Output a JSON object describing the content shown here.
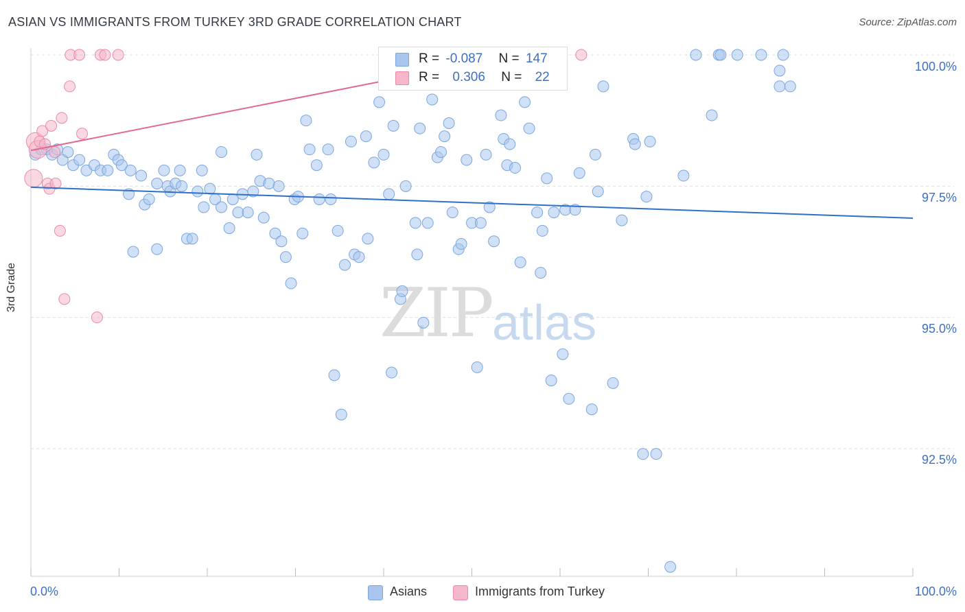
{
  "title": "ASIAN VS IMMIGRANTS FROM TURKEY 3RD GRADE CORRELATION CHART",
  "source": "Source: ZipAtlas.com",
  "watermark": {
    "zip": "ZIP",
    "atlas": "atlas"
  },
  "legend": {
    "rows": [
      {
        "r_label": "R =",
        "r_value": "-0.087",
        "n_label": "N =",
        "n_value": "147",
        "color": "#a9c6ee"
      },
      {
        "r_label": "R =",
        "r_value": "0.306",
        "n_label": "N =",
        "n_value": "22",
        "color": "#f5b8cb"
      }
    ]
  },
  "bottom_legend": [
    {
      "label": "Asians",
      "color": "#a9c6ee"
    },
    {
      "label": "Immigrants from Turkey",
      "color": "#f5b8cb"
    }
  ],
  "chart_data": {
    "type": "scatter",
    "title": "ASIAN VS IMMIGRANTS FROM TURKEY 3RD GRADE CORRELATION CHART",
    "xlabel": "",
    "ylabel": "3rd Grade",
    "xlim": [
      0,
      100
    ],
    "ylim": [
      90.2,
      100.3
    ],
    "x_tick_labels": [
      "0.0%",
      "100.0%"
    ],
    "y_ticks": [
      92.5,
      95.0,
      97.5,
      100.0
    ],
    "y_tick_labels": [
      "92.5%",
      "95.0%",
      "97.5%",
      "100.0%"
    ],
    "grid": true,
    "series": [
      {
        "name": "Asians",
        "color": "#a9c6ee",
        "stroke": "#7aa6de",
        "trend": {
          "x": [
            0,
            100
          ],
          "y": [
            97.48,
            96.89
          ],
          "color": "#2f6fca"
        },
        "points": [
          [
            0.5,
            98.1
          ],
          [
            1.2,
            98.2
          ],
          [
            1.8,
            98.2
          ],
          [
            2.4,
            98.1
          ],
          [
            3.0,
            98.2
          ],
          [
            3.6,
            98.0
          ],
          [
            4.2,
            98.15
          ],
          [
            4.8,
            97.9
          ],
          [
            5.5,
            98.0
          ],
          [
            6.3,
            97.8
          ],
          [
            7.2,
            97.9
          ],
          [
            7.9,
            97.8
          ],
          [
            8.7,
            97.8
          ],
          [
            9.4,
            98.1
          ],
          [
            9.9,
            98.0
          ],
          [
            10.3,
            97.9
          ],
          [
            11.1,
            97.35
          ],
          [
            11.3,
            97.8
          ],
          [
            12.5,
            97.7
          ],
          [
            12.9,
            97.15
          ],
          [
            13.4,
            97.25
          ],
          [
            11.6,
            96.25
          ],
          [
            14.3,
            97.55
          ],
          [
            14.3,
            96.3
          ],
          [
            15.1,
            97.8
          ],
          [
            15.5,
            97.5
          ],
          [
            15.8,
            97.4
          ],
          [
            16.4,
            97.55
          ],
          [
            16.9,
            97.8
          ],
          [
            17.1,
            97.5
          ],
          [
            17.7,
            96.5
          ],
          [
            18.3,
            96.5
          ],
          [
            18.9,
            97.4
          ],
          [
            19.4,
            97.8
          ],
          [
            19.6,
            97.1
          ],
          [
            20.3,
            97.45
          ],
          [
            20.9,
            97.25
          ],
          [
            21.6,
            97.1
          ],
          [
            21.6,
            98.15
          ],
          [
            22.5,
            96.7
          ],
          [
            22.9,
            97.25
          ],
          [
            23.5,
            97.0
          ],
          [
            24.0,
            97.35
          ],
          [
            24.6,
            97.0
          ],
          [
            25.2,
            97.4
          ],
          [
            25.6,
            98.1
          ],
          [
            26.0,
            97.6
          ],
          [
            26.4,
            96.9
          ],
          [
            27.0,
            97.55
          ],
          [
            27.7,
            96.6
          ],
          [
            28.1,
            97.5
          ],
          [
            28.4,
            96.45
          ],
          [
            28.9,
            96.15
          ],
          [
            29.5,
            95.65
          ],
          [
            29.9,
            97.25
          ],
          [
            30.3,
            97.3
          ],
          [
            30.8,
            96.6
          ],
          [
            31.2,
            98.75
          ],
          [
            31.6,
            98.2
          ],
          [
            32.4,
            97.9
          ],
          [
            32.7,
            97.25
          ],
          [
            33.7,
            98.2
          ],
          [
            34.0,
            97.25
          ],
          [
            34.4,
            93.9
          ],
          [
            34.8,
            96.65
          ],
          [
            35.2,
            93.15
          ],
          [
            35.6,
            96.0
          ],
          [
            36.3,
            98.35
          ],
          [
            36.7,
            96.2
          ],
          [
            37.2,
            96.15
          ],
          [
            38.0,
            98.45
          ],
          [
            38.2,
            96.5
          ],
          [
            38.9,
            97.95
          ],
          [
            39.5,
            99.1
          ],
          [
            40.0,
            98.1
          ],
          [
            40.6,
            97.35
          ],
          [
            40.9,
            93.95
          ],
          [
            41.1,
            98.65
          ],
          [
            41.9,
            95.35
          ],
          [
            42.1,
            95.5
          ],
          [
            42.5,
            97.5
          ],
          [
            43.6,
            96.8
          ],
          [
            43.8,
            96.2
          ],
          [
            44.1,
            98.6
          ],
          [
            44.5,
            94.9
          ],
          [
            45.0,
            96.8
          ],
          [
            45.5,
            99.15
          ],
          [
            46.1,
            98.05
          ],
          [
            46.5,
            98.15
          ],
          [
            46.9,
            98.45
          ],
          [
            47.4,
            98.7
          ],
          [
            47.8,
            97.0
          ],
          [
            48.5,
            96.3
          ],
          [
            48.8,
            96.4
          ],
          [
            49.4,
            98.0
          ],
          [
            50.0,
            96.8
          ],
          [
            50.6,
            94.05
          ],
          [
            51.0,
            96.8
          ],
          [
            51.6,
            98.1
          ],
          [
            52.0,
            97.1
          ],
          [
            52.5,
            96.45
          ],
          [
            53.3,
            98.85
          ],
          [
            53.6,
            98.4
          ],
          [
            54.0,
            97.9
          ],
          [
            54.3,
            98.3
          ],
          [
            54.9,
            97.85
          ],
          [
            55.5,
            96.05
          ],
          [
            56.0,
            99.1
          ],
          [
            56.5,
            98.6
          ],
          [
            57.4,
            97.0
          ],
          [
            57.8,
            95.85
          ],
          [
            58.0,
            96.65
          ],
          [
            58.5,
            97.65
          ],
          [
            59.0,
            93.8
          ],
          [
            59.3,
            97.0
          ],
          [
            60.3,
            94.3
          ],
          [
            60.6,
            97.05
          ],
          [
            61.0,
            93.45
          ],
          [
            61.7,
            97.05
          ],
          [
            62.2,
            97.75
          ],
          [
            63.6,
            93.25
          ],
          [
            64.0,
            98.1
          ],
          [
            64.3,
            97.4
          ],
          [
            64.9,
            99.4
          ],
          [
            66.0,
            93.75
          ],
          [
            67.0,
            96.85
          ],
          [
            68.3,
            98.4
          ],
          [
            68.5,
            98.3
          ],
          [
            69.4,
            92.4
          ],
          [
            69.8,
            97.3
          ],
          [
            70.2,
            98.35
          ],
          [
            70.9,
            92.4
          ],
          [
            72.5,
            90.25
          ],
          [
            74.0,
            97.7
          ],
          [
            75.4,
            100.0
          ],
          [
            77.2,
            98.85
          ],
          [
            78.0,
            100.0
          ],
          [
            78.2,
            100.0
          ],
          [
            80.1,
            100.0
          ],
          [
            82.8,
            100.0
          ],
          [
            84.9,
            99.7
          ],
          [
            85.3,
            100.0
          ],
          [
            84.9,
            99.4
          ],
          [
            86.1,
            99.4
          ]
        ]
      },
      {
        "name": "Immigrants from Turkey",
        "color": "#f5b8cb",
        "stroke": "#ea8aa8",
        "trend": {
          "x": [
            0,
            55
          ],
          "y": [
            98.18,
            100.0
          ],
          "color": "#e06891"
        },
        "points": [
          [
            0.3,
            97.65
          ],
          [
            0.5,
            98.35
          ],
          [
            0.8,
            98.2
          ],
          [
            1.0,
            98.35
          ],
          [
            1.3,
            98.55
          ],
          [
            1.6,
            98.3
          ],
          [
            1.9,
            97.55
          ],
          [
            2.1,
            97.45
          ],
          [
            2.3,
            98.65
          ],
          [
            2.7,
            98.15
          ],
          [
            2.8,
            97.55
          ],
          [
            3.3,
            96.65
          ],
          [
            3.5,
            98.8
          ],
          [
            3.8,
            95.35
          ],
          [
            4.4,
            99.4
          ],
          [
            4.5,
            100.0
          ],
          [
            5.5,
            100.0
          ],
          [
            5.8,
            98.5
          ],
          [
            7.5,
            95.0
          ],
          [
            7.9,
            100.0
          ],
          [
            8.4,
            100.0
          ],
          [
            9.9,
            100.0
          ],
          [
            62.4,
            100.0
          ]
        ]
      }
    ]
  }
}
